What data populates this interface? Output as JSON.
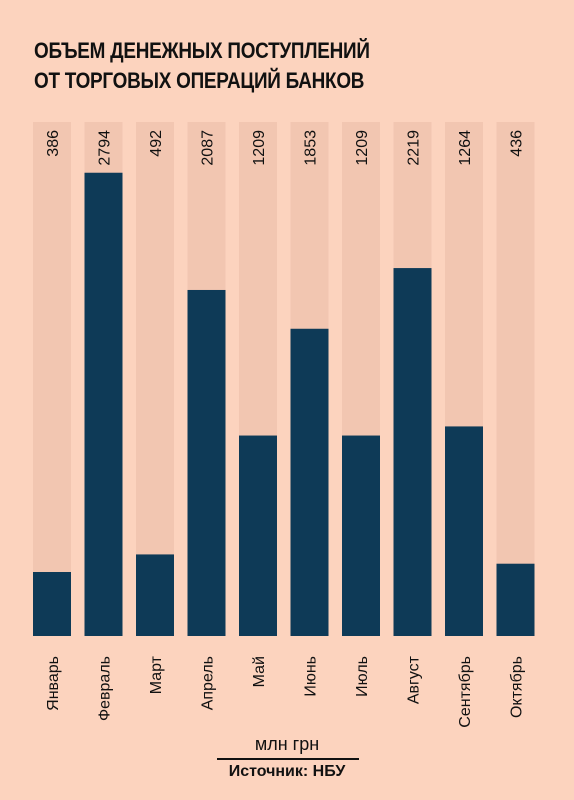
{
  "title_lines": [
    "ОБЪЕМ ДЕНЕЖНЫХ ПОСТУПЛЕНИЙ",
    "ОТ ТОРГОВЫХ ОПЕРАЦИЙ БАНКОВ"
  ],
  "unit_label": "млн грн",
  "source_label": "Источник: НБУ",
  "colors": {
    "background": "#fcd3be",
    "track": "#f2c6b1",
    "bar": "#0e3a57",
    "text": "#111111"
  },
  "chart_data": {
    "type": "bar",
    "title": "ОБЪЕМ ДЕНЕЖНЫХ ПОСТУПЛЕНИЙ ОТ ТОРГОВЫХ ОПЕРАЦИЙ БАНКОВ",
    "categories": [
      "Январь",
      "Февраль",
      "Март",
      "Апрель",
      "Май",
      "Июнь",
      "Июль",
      "Август",
      "Сентябрь",
      "Октябрь"
    ],
    "values": [
      386,
      2794,
      492,
      2087,
      1209,
      1853,
      1209,
      2219,
      1264,
      436
    ],
    "ylabel": "млн грн",
    "ylim": [
      0,
      3100
    ],
    "grid": false,
    "legend": "none",
    "value_labels": "rotated, at top of each column track"
  }
}
